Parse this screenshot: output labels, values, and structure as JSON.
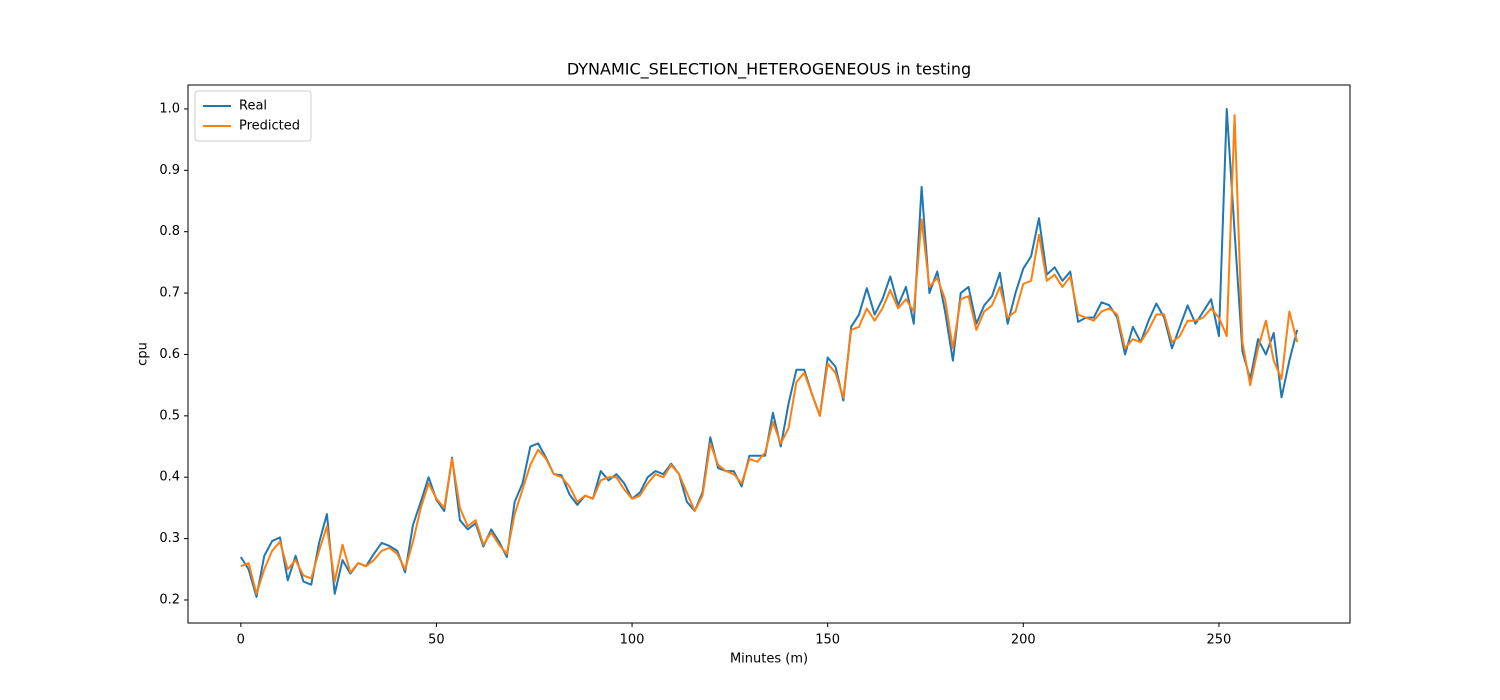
{
  "chart_data": {
    "type": "line",
    "title": "DYNAMIC_SELECTION_HETEROGENEOUS in testing",
    "x_label": "Minutes (m)",
    "y_label": "cpu",
    "x": [
      0,
      2,
      4,
      6,
      8,
      10,
      12,
      14,
      16,
      18,
      20,
      22,
      24,
      26,
      28,
      30,
      32,
      34,
      36,
      38,
      40,
      42,
      44,
      46,
      48,
      50,
      52,
      54,
      56,
      58,
      60,
      62,
      64,
      66,
      68,
      70,
      72,
      74,
      76,
      78,
      80,
      82,
      84,
      86,
      88,
      90,
      92,
      94,
      96,
      98,
      100,
      102,
      104,
      106,
      108,
      110,
      112,
      114,
      116,
      118,
      120,
      122,
      124,
      126,
      128,
      130,
      132,
      134,
      136,
      138,
      140,
      142,
      144,
      146,
      148,
      150,
      152,
      154,
      156,
      158,
      160,
      162,
      164,
      166,
      168,
      170,
      172,
      174,
      176,
      178,
      180,
      182,
      184,
      186,
      188,
      190,
      192,
      194,
      196,
      198,
      200,
      202,
      204,
      206,
      208,
      210,
      212,
      214,
      216,
      218,
      220,
      222,
      224,
      226,
      228,
      230,
      232,
      234,
      236,
      238,
      240,
      242,
      244,
      246,
      248,
      250,
      252,
      254,
      256,
      258,
      260,
      262,
      264,
      266,
      268,
      270
    ],
    "series": [
      {
        "name": "Real",
        "color": "#1f77b4",
        "values": [
          0.27,
          0.25,
          0.205,
          0.272,
          0.296,
          0.302,
          0.232,
          0.272,
          0.23,
          0.225,
          0.293,
          0.34,
          0.21,
          0.265,
          0.243,
          0.26,
          0.255,
          0.275,
          0.293,
          0.288,
          0.28,
          0.245,
          0.322,
          0.36,
          0.4,
          0.363,
          0.345,
          0.432,
          0.33,
          0.315,
          0.325,
          0.287,
          0.315,
          0.295,
          0.27,
          0.36,
          0.39,
          0.45,
          0.455,
          0.432,
          0.405,
          0.403,
          0.372,
          0.355,
          0.37,
          0.365,
          0.41,
          0.395,
          0.405,
          0.39,
          0.365,
          0.375,
          0.4,
          0.41,
          0.405,
          0.422,
          0.405,
          0.36,
          0.345,
          0.375,
          0.465,
          0.415,
          0.41,
          0.41,
          0.385,
          0.435,
          0.435,
          0.435,
          0.505,
          0.45,
          0.52,
          0.575,
          0.575,
          0.535,
          0.5,
          0.595,
          0.58,
          0.525,
          0.645,
          0.665,
          0.708,
          0.665,
          0.69,
          0.727,
          0.68,
          0.71,
          0.65,
          0.873,
          0.7,
          0.735,
          0.67,
          0.59,
          0.7,
          0.71,
          0.65,
          0.68,
          0.695,
          0.733,
          0.65,
          0.7,
          0.74,
          0.76,
          0.822,
          0.73,
          0.742,
          0.72,
          0.735,
          0.653,
          0.66,
          0.66,
          0.685,
          0.68,
          0.66,
          0.6,
          0.645,
          0.62,
          0.655,
          0.683,
          0.66,
          0.61,
          0.645,
          0.68,
          0.65,
          0.67,
          0.69,
          0.63,
          1.0,
          0.8,
          0.605,
          0.56,
          0.625,
          0.6,
          0.635,
          0.53,
          0.59,
          0.64
        ]
      },
      {
        "name": "Predicted",
        "color": "#ff7f0e",
        "values": [
          0.255,
          0.26,
          0.21,
          0.25,
          0.28,
          0.295,
          0.25,
          0.265,
          0.24,
          0.235,
          0.28,
          0.32,
          0.23,
          0.29,
          0.245,
          0.26,
          0.255,
          0.265,
          0.28,
          0.285,
          0.275,
          0.25,
          0.295,
          0.35,
          0.39,
          0.365,
          0.35,
          0.43,
          0.35,
          0.32,
          0.33,
          0.29,
          0.31,
          0.29,
          0.275,
          0.34,
          0.38,
          0.42,
          0.445,
          0.43,
          0.405,
          0.4,
          0.385,
          0.36,
          0.37,
          0.365,
          0.395,
          0.4,
          0.4,
          0.38,
          0.365,
          0.37,
          0.39,
          0.405,
          0.4,
          0.42,
          0.405,
          0.375,
          0.345,
          0.37,
          0.455,
          0.42,
          0.41,
          0.405,
          0.39,
          0.43,
          0.425,
          0.44,
          0.49,
          0.455,
          0.48,
          0.555,
          0.57,
          0.535,
          0.5,
          0.585,
          0.57,
          0.53,
          0.64,
          0.645,
          0.675,
          0.655,
          0.675,
          0.705,
          0.675,
          0.69,
          0.67,
          0.82,
          0.71,
          0.725,
          0.69,
          0.61,
          0.69,
          0.695,
          0.64,
          0.67,
          0.68,
          0.71,
          0.66,
          0.67,
          0.715,
          0.72,
          0.795,
          0.72,
          0.73,
          0.71,
          0.727,
          0.665,
          0.66,
          0.655,
          0.67,
          0.675,
          0.665,
          0.61,
          0.625,
          0.62,
          0.64,
          0.665,
          0.665,
          0.62,
          0.63,
          0.655,
          0.655,
          0.66,
          0.675,
          0.66,
          0.63,
          0.99,
          0.62,
          0.55,
          0.61,
          0.655,
          0.59,
          0.56,
          0.67,
          0.62
        ]
      }
    ],
    "xlim": [
      -13.5,
      283.5
    ],
    "xticks": [
      0,
      50,
      100,
      150,
      200,
      250
    ],
    "ylim": [
      0.1625,
      1.039
    ],
    "yticks": [
      0.2,
      0.3,
      0.4,
      0.5,
      0.6,
      0.7,
      0.8,
      0.9,
      {
        "value": 1,
        "label": "1.0"
      }
    ],
    "grid": false,
    "legend": "upper left"
  }
}
